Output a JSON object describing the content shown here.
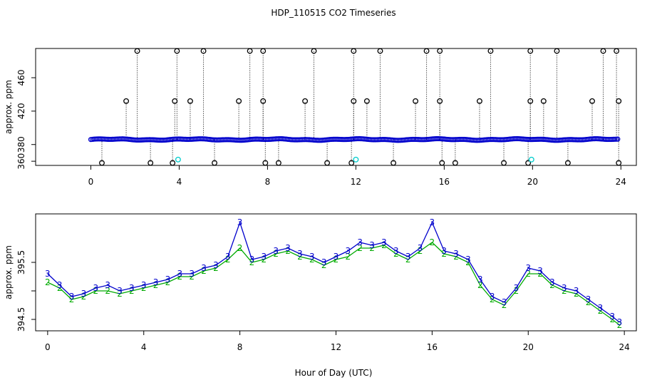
{
  "chart_data": [
    {
      "type": "scatter",
      "title": "HDP_110515  CO2 Timeseries",
      "ylabel": "approx. ppm",
      "xlim": [
        -2.5,
        24.7
      ],
      "ylim": [
        355,
        495
      ],
      "xticks": [
        0,
        4,
        8,
        12,
        16,
        20,
        24
      ],
      "yticks": [
        360,
        380,
        420,
        460
      ],
      "ytick_labels": [
        "360",
        "380",
        "420",
        "460"
      ],
      "baseline": 386,
      "series": [
        {
          "color": "#0000cc",
          "marker": "circle",
          "note": "dense baseline around 386 ppm with occasional spikes",
          "values": []
        }
      ],
      "spikes_high": [
        2.1,
        3.9,
        5.1,
        7.2,
        7.8,
        10.1,
        11.9,
        13.1,
        15.2,
        15.8,
        18.1,
        19.9,
        21.1,
        23.2,
        23.8
      ],
      "spikes_mid": [
        1.6,
        3.8,
        4.5,
        6.7,
        7.8,
        9.7,
        11.9,
        12.5,
        14.7,
        15.8,
        17.6,
        19.9,
        20.5,
        22.7,
        23.9
      ],
      "spikes_low": [
        0.5,
        2.7,
        3.7,
        5.6,
        7.9,
        8.5,
        10.7,
        11.8,
        13.7,
        15.9,
        16.5,
        18.7,
        19.8,
        21.6,
        23.9
      ],
      "spike_high_value": 492,
      "spike_mid_value": 432,
      "spike_low_value": 358,
      "cyan_points": [
        [
          3.95,
          362
        ],
        [
          12.0,
          362
        ],
        [
          19.95,
          362
        ]
      ]
    },
    {
      "type": "line",
      "ylabel": "approx. ppm",
      "xlabel": "Hour of Day (UTC)",
      "xlim": [
        -0.5,
        24.5
      ],
      "ylim": [
        394.3,
        396.35
      ],
      "xticks": [
        0,
        4,
        8,
        12,
        16,
        20,
        24
      ],
      "yticks": [
        394.5,
        395.0,
        395.5
      ],
      "ytick_labels": [
        "394.5",
        "",
        "395.5"
      ],
      "series": [
        {
          "name": "3",
          "color": "#0000cc",
          "x": [
            0.0,
            0.5,
            1.0,
            1.5,
            2.0,
            2.5,
            3.0,
            3.5,
            4.0,
            4.5,
            5.0,
            5.5,
            6.0,
            6.5,
            7.0,
            7.5,
            8.0,
            8.5,
            9.0,
            9.5,
            10.0,
            10.5,
            11.0,
            11.5,
            12.0,
            12.5,
            13.0,
            13.5,
            14.0,
            14.5,
            15.0,
            15.5,
            16.0,
            16.5,
            17.0,
            17.5,
            18.0,
            18.5,
            19.0,
            19.5,
            20.0,
            20.5,
            21.0,
            21.5,
            22.0,
            22.5,
            23.0,
            23.5,
            23.8
          ],
          "values": [
            395.3,
            395.1,
            394.9,
            394.95,
            395.05,
            395.1,
            395.0,
            395.05,
            395.1,
            395.15,
            395.2,
            395.3,
            395.3,
            395.4,
            395.45,
            395.6,
            396.2,
            395.55,
            395.6,
            395.7,
            395.75,
            395.65,
            395.6,
            395.5,
            395.6,
            395.7,
            395.85,
            395.8,
            395.85,
            395.7,
            395.6,
            395.75,
            396.2,
            395.7,
            395.65,
            395.55,
            395.2,
            394.9,
            394.8,
            395.05,
            395.4,
            395.35,
            395.15,
            395.05,
            395.0,
            394.85,
            394.7,
            394.55,
            394.45
          ]
        },
        {
          "name": "2",
          "color": "#00aa00",
          "x": [
            0.0,
            0.5,
            1.0,
            1.5,
            2.0,
            2.5,
            3.0,
            3.5,
            4.0,
            4.5,
            5.0,
            5.5,
            6.0,
            6.5,
            7.0,
            7.5,
            8.0,
            8.5,
            9.0,
            9.5,
            10.0,
            10.5,
            11.0,
            11.5,
            12.0,
            12.5,
            13.0,
            13.5,
            14.0,
            14.5,
            15.0,
            15.5,
            16.0,
            16.5,
            17.0,
            17.5,
            18.0,
            18.5,
            19.0,
            19.5,
            20.0,
            20.5,
            21.0,
            21.5,
            22.0,
            22.5,
            23.0,
            23.5,
            23.8
          ],
          "values": [
            395.15,
            395.05,
            394.85,
            394.9,
            395.0,
            395.0,
            394.95,
            395.0,
            395.05,
            395.1,
            395.15,
            395.25,
            395.25,
            395.35,
            395.4,
            395.55,
            395.75,
            395.5,
            395.55,
            395.65,
            395.7,
            395.6,
            395.55,
            395.45,
            395.55,
            395.6,
            395.75,
            395.75,
            395.8,
            395.65,
            395.55,
            395.7,
            395.85,
            395.65,
            395.6,
            395.5,
            395.1,
            394.85,
            394.75,
            395.0,
            395.3,
            395.3,
            395.1,
            395.0,
            394.95,
            394.8,
            394.65,
            394.5,
            394.4
          ]
        }
      ]
    }
  ]
}
